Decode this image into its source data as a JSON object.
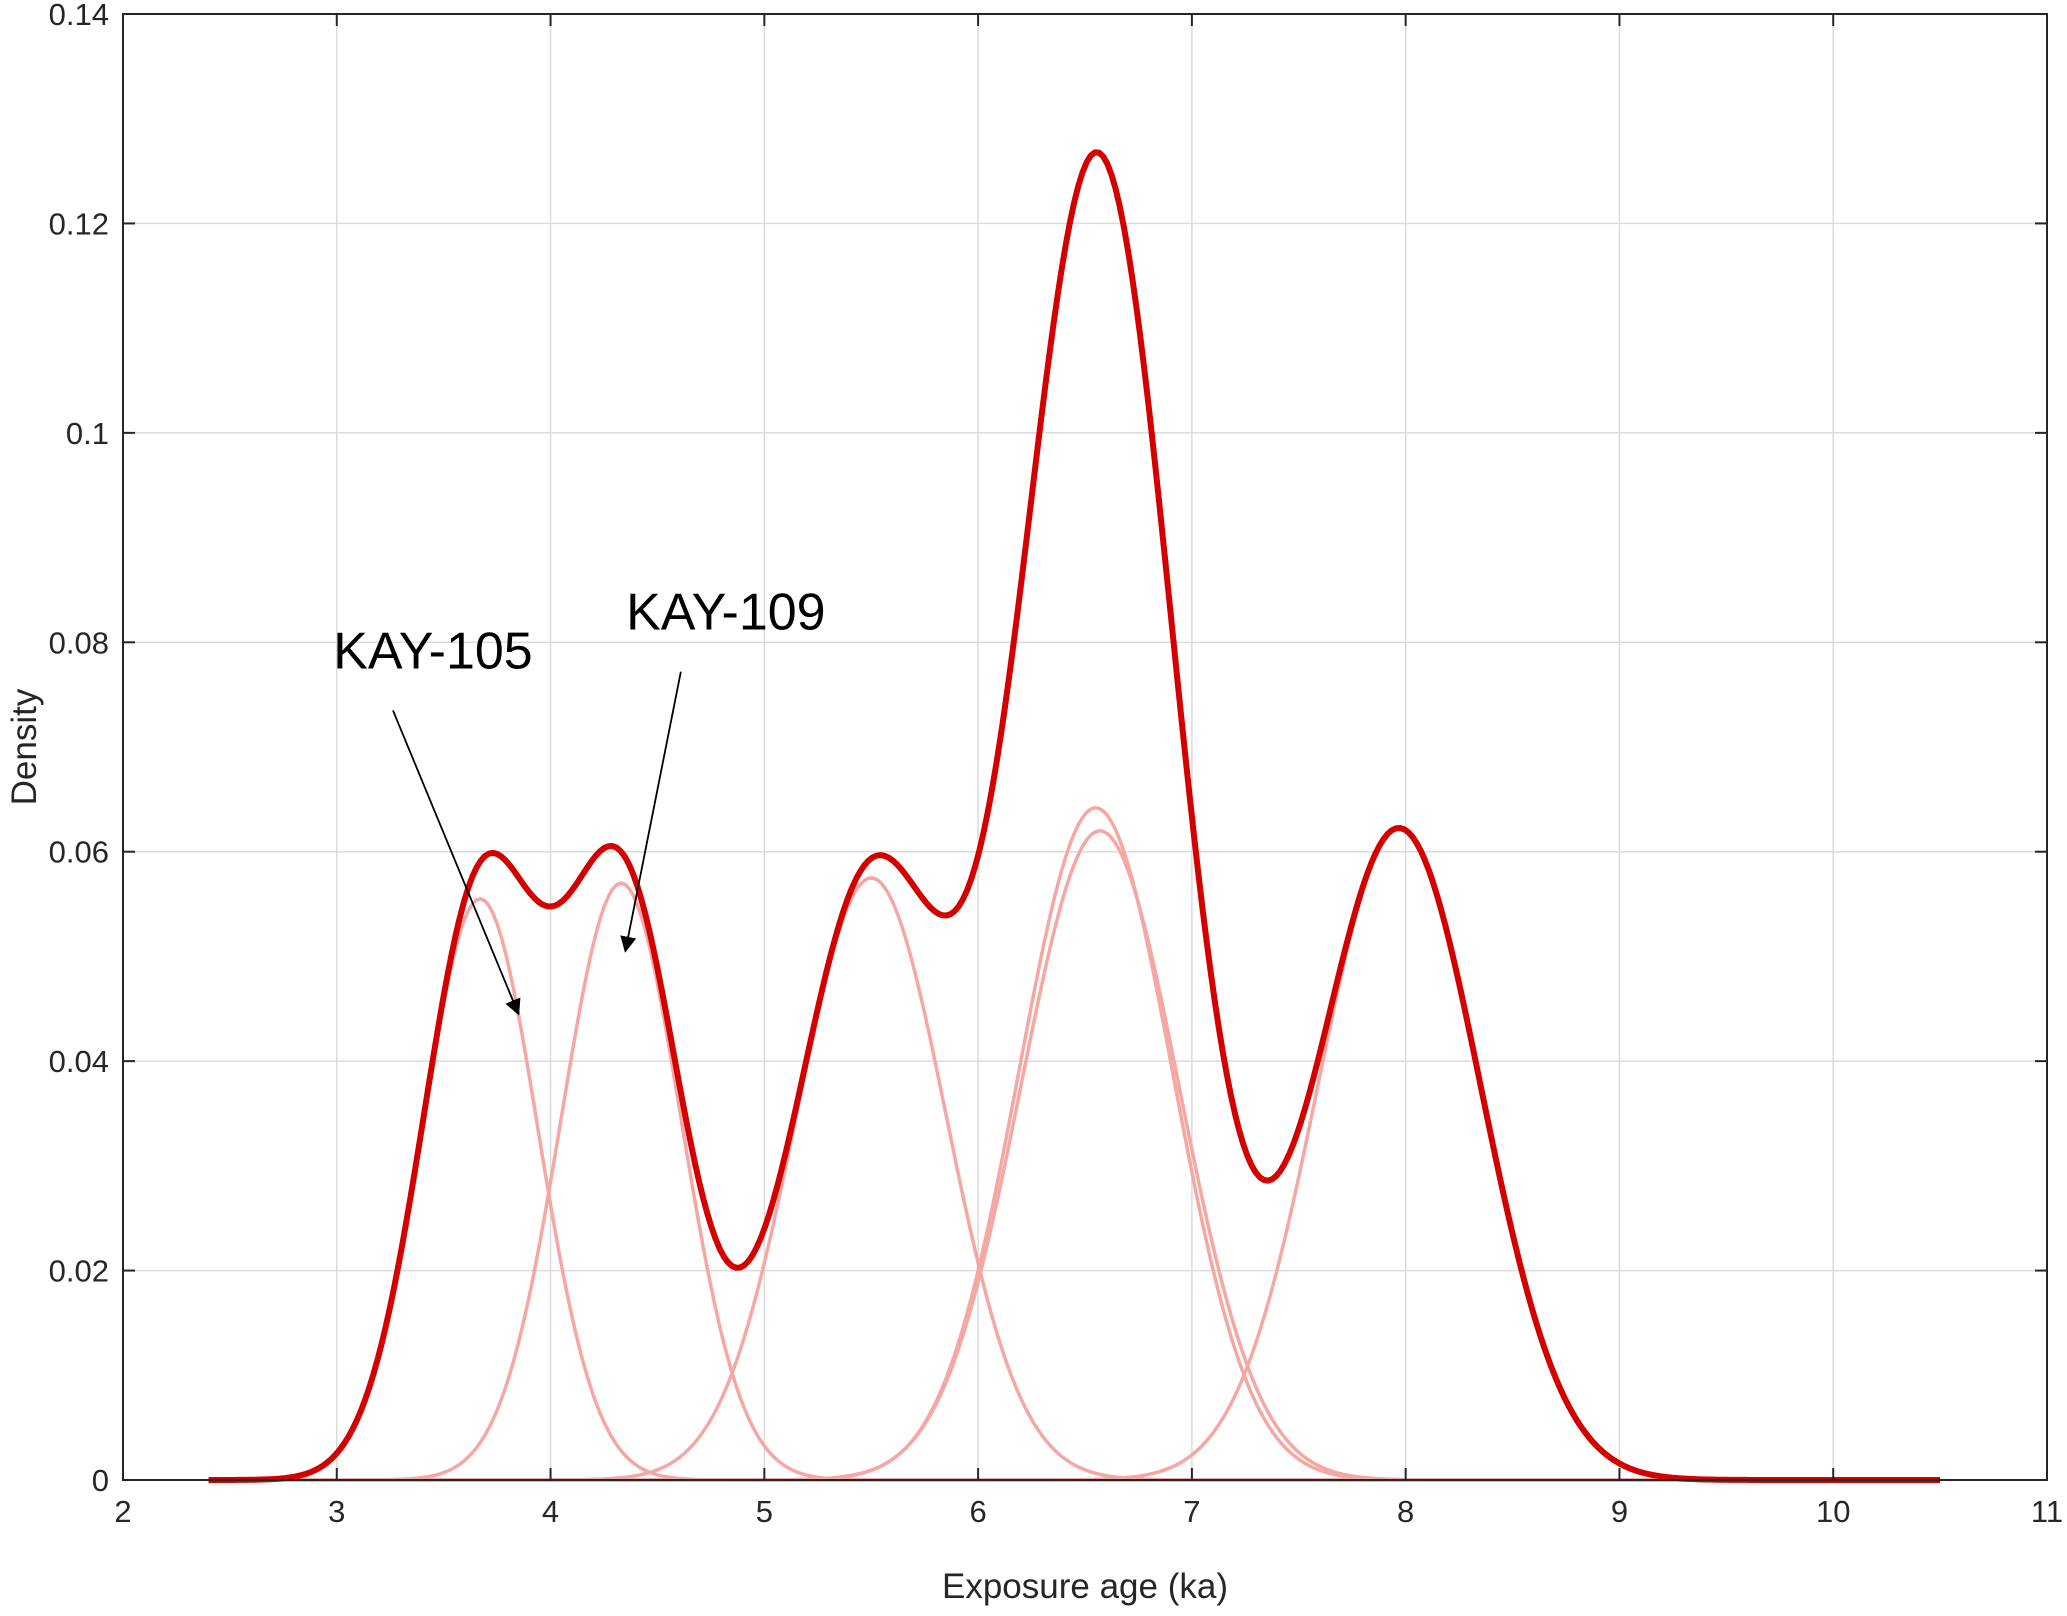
{
  "chart_data": {
    "type": "line",
    "title": "",
    "xlabel": "Exposure age (ka)",
    "ylabel": "Density",
    "xlim": [
      2,
      11
    ],
    "ylim": [
      0,
      0.14
    ],
    "xticks": [
      2,
      3,
      4,
      5,
      6,
      7,
      8,
      9,
      10,
      11
    ],
    "yticks": [
      0,
      0.02,
      0.04,
      0.06,
      0.08,
      0.1,
      0.12,
      0.14
    ],
    "xtick_labels": [
      "2",
      "3",
      "4",
      "5",
      "6",
      "7",
      "8",
      "9",
      "10",
      "11"
    ],
    "ytick_labels": [
      "0",
      "0.02",
      "0.04",
      "0.06",
      "0.08",
      "0.1",
      "0.12",
      "0.14"
    ],
    "grid": true,
    "x_range": [
      2.4,
      10.5
    ],
    "components": [
      {
        "mean": 3.67,
        "sd": 0.27,
        "peak": 0.0555
      },
      {
        "mean": 4.33,
        "sd": 0.28,
        "peak": 0.057
      },
      {
        "mean": 5.5,
        "sd": 0.35,
        "peak": 0.0575
      },
      {
        "mean": 6.55,
        "sd": 0.36,
        "peak": 0.0642
      },
      {
        "mean": 6.57,
        "sd": 0.37,
        "peak": 0.062
      },
      {
        "mean": 7.97,
        "sd": 0.38,
        "peak": 0.0622
      }
    ],
    "colors": {
      "sum": "#d40000",
      "component": "#f5a8a3"
    },
    "annotations": [
      {
        "text": "KAY-105",
        "label_x": 3.45,
        "label_y": 0.0775,
        "arrow_to_x": 3.85,
        "arrow_to_y": 0.0445
      },
      {
        "text": "KAY-109",
        "label_x": 4.82,
        "label_y": 0.0812,
        "arrow_to_x": 4.35,
        "arrow_to_y": 0.0505
      }
    ]
  }
}
